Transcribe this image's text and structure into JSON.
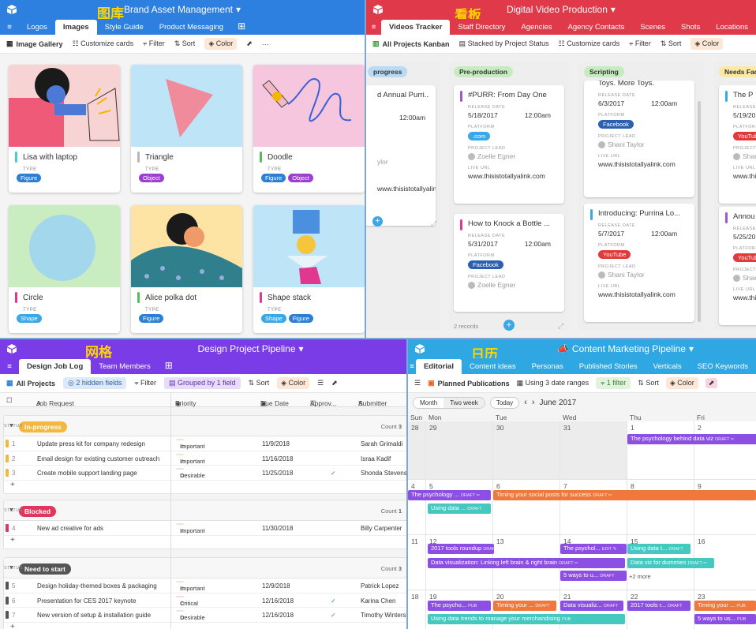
{
  "gallery": {
    "title": "Brand Asset Management",
    "cn": "图库",
    "tabs": [
      "Logos",
      "Images",
      "Style Guide",
      "Product Messaging"
    ],
    "view": "Image Gallery",
    "customize": "Customize cards",
    "filter": "Filter",
    "sort": "Sort",
    "color": "Color",
    "type_label": "TYPE",
    "cards": [
      {
        "name": "Lisa with laptop",
        "bar": "#4ec9c9",
        "badges": [
          {
            "t": "Figure",
            "c": "#2d7fd3"
          }
        ]
      },
      {
        "name": "Triangle",
        "bar": "#b7b7b7",
        "badges": [
          {
            "t": "Object",
            "c": "#9a3fcf"
          }
        ]
      },
      {
        "name": "Doodle",
        "bar": "#5ab95a",
        "badges": [
          {
            "t": "Figure",
            "c": "#2d7fd3"
          },
          {
            "t": "Object",
            "c": "#9a3fcf"
          }
        ]
      },
      {
        "name": "Circle",
        "bar": "#e2378f",
        "badges": [
          {
            "t": "Shape",
            "c": "#39a8e8"
          }
        ]
      },
      {
        "name": "Alice polka dot",
        "bar": "#5ab95a",
        "badges": [
          {
            "t": "Figure",
            "c": "#2d7fd3"
          }
        ]
      },
      {
        "name": "Shape stack",
        "bar": "#e2378f",
        "badges": [
          {
            "t": "Shape",
            "c": "#39a8e8"
          },
          {
            "t": "Figure",
            "c": "#2d7fd3"
          }
        ]
      }
    ]
  },
  "kanban": {
    "title": "Digital Video Production",
    "cn": "看板",
    "tabs": [
      "Videos Tracker",
      "Staff Directory",
      "Agencies",
      "Agency Contacts",
      "Scenes",
      "Shots",
      "Locations"
    ],
    "view": "All Projects Kanban",
    "stacked": "Stacked by Project Status",
    "customize": "Customize cards",
    "filter": "Filter",
    "sort": "Sort",
    "color": "Color",
    "lbl_release": "RELEASE DATE",
    "lbl_platform": "PLATFORM",
    "lbl_lead": "PROJECT LEAD",
    "lbl_live": "LIVE URL",
    "time": "12:00am",
    "url": "www.thisistotallyalink.com",
    "columns": [
      {
        "name": "progress",
        "color": "#b8daf5",
        "cards": [
          {
            "title": "d Annual Purri...",
            "date": "",
            "lead": "ylor"
          }
        ]
      },
      {
        "name": "Pre-production",
        "color": "#c6ebbf",
        "records": "2 records",
        "cards": [
          {
            "title": "#PURR: From Day One",
            "bar": "#9b59d0",
            "date": "5/18/2017",
            "platform": ".com",
            "pc": "#39a8e8",
            "lead": "Zoelle Egner"
          },
          {
            "title": "How to Knock a Bottle ...",
            "bar": "#e2378f",
            "date": "5/31/2017",
            "platform": "Facebook",
            "pc": "#2d5fb0",
            "lead": "Zoelle Egner"
          }
        ]
      },
      {
        "name": "Scripting",
        "color": "#c6ebbf",
        "cards": [
          {
            "title": "Toys. More Toys.",
            "date": "6/3/2017",
            "platform": "Facebook",
            "pc": "#2d5fb0",
            "lead": "Shani Taylor"
          },
          {
            "title": "Introducing: Purrina Lo...",
            "bar": "#39a8e8",
            "date": "5/7/2017",
            "platform": "YouTube",
            "pc": "#e03a3a",
            "lead": "Shani Taylor"
          }
        ]
      },
      {
        "name": "Needs Fact",
        "color": "#fde7a6",
        "cards": [
          {
            "title": "The P",
            "date": "5/19/2017",
            "platform": "YouTube",
            "pc": "#e03a3a",
            "lead": "Shani"
          },
          {
            "title": "Annou",
            "date": "5/25/2017",
            "platform": "YouTube",
            "pc": "#e03a3a",
            "lead": "Shani"
          }
        ]
      }
    ]
  },
  "grid": {
    "title": "Design Project Pipeline",
    "cn": "网格",
    "tabs": [
      "Design Job Log",
      "Team Members"
    ],
    "view": "All Projects",
    "hidden": "2 hidden fields",
    "filter": "Filter",
    "grouped": "Grouped by 1 field",
    "sort": "Sort",
    "color": "Color",
    "cols": [
      "Job Request",
      "Priority",
      "Due Date",
      "Approv...",
      "Submitter"
    ],
    "status": "STATUS",
    "count": "Count",
    "groups": [
      {
        "name": "In-progress",
        "color": "#f5b83d",
        "n": "3",
        "rows": [
          {
            "i": "1",
            "job": "Update press kit for company redesign",
            "pri": "Important",
            "pc": "#d9f2d2",
            "due": "11/9/2018",
            "ap": "",
            "sub": "Sarah Grimaldi"
          },
          {
            "i": "2",
            "job": "Email design for existing customer outreach",
            "pri": "Important",
            "pc": "#d9f2d2",
            "due": "11/16/2018",
            "ap": "",
            "sub": "Israa Kadif"
          },
          {
            "i": "3",
            "job": "Create mobile support landing page",
            "pri": "Desirable",
            "pc": "#dbe8f9",
            "due": "11/25/2018",
            "ap": "✓",
            "sub": "Shonda Stevens"
          }
        ]
      },
      {
        "name": "Blocked",
        "color": "#e0385d",
        "n": "1",
        "rows": [
          {
            "i": "4",
            "job": "New ad creative for ads",
            "pri": "Important",
            "pc": "#d9f2d2",
            "due": "11/30/2018",
            "ap": "",
            "sub": "Billy Carpenter"
          }
        ]
      },
      {
        "name": "Need to start",
        "color": "#555",
        "n": "3",
        "rows": [
          {
            "i": "5",
            "job": "Design holiday-themed boxes & packaging",
            "pri": "Important",
            "pc": "#d9f2d2",
            "due": "12/9/2018",
            "ap": "",
            "sub": "Patrick Lopez"
          },
          {
            "i": "6",
            "job": "Presentation for CES 2017 keynote",
            "pri": "Critical",
            "pc": "#fbd6d6",
            "due": "12/16/2018",
            "ap": "✓",
            "sub": "Karina Chen"
          },
          {
            "i": "7",
            "job": "New version of setup & installation guide",
            "pri": "Desirable",
            "pc": "#dbe8f9",
            "due": "12/16/2018",
            "ap": "✓",
            "sub": "Timothy Winters"
          }
        ]
      }
    ]
  },
  "calendar": {
    "title": "Content Marketing Pipeline",
    "cn": "日历",
    "tabs": [
      "Editorial",
      "Content ideas",
      "Personas",
      "Published Stories",
      "Verticals",
      "SEO Keywords"
    ],
    "view": "Planned Publications",
    "ranges": "Using 3 date ranges",
    "filter1": "1 filter",
    "sort": "Sort",
    "color": "Color",
    "month": "Month",
    "twoweek": "Two week",
    "today": "Today",
    "label": "June 2017",
    "days": [
      "Sun",
      "Mon",
      "Tue",
      "Wed",
      "Thu",
      "Fri"
    ],
    "weeks": [
      [
        "28",
        "29",
        "30",
        "31",
        "1",
        "2"
      ],
      [
        "4",
        "5",
        "6",
        "7",
        "8",
        "9"
      ],
      [
        "11",
        "12",
        "13",
        "14",
        "15",
        "16"
      ],
      [
        "18",
        "19",
        "20",
        "21",
        "22",
        "23"
      ]
    ],
    "more": "+2 more",
    "events": [
      {
        "t": "The psychology behind data viz",
        "s": "DRAFT ✏",
        "c": "#8d4fe3"
      },
      {
        "t": "The psychology ...",
        "s": "DRAFT ✏",
        "c": "#8d4fe3"
      },
      {
        "t": "Timing your social posts for success",
        "s": "DRAFT ✏",
        "c": "#f0783c"
      },
      {
        "t": "Using data ...",
        "s": "DRAFT",
        "c": "#45c8c0"
      },
      {
        "t": "2017 tools roundup",
        "s": "DRAFT ✏",
        "c": "#8d4fe3"
      },
      {
        "t": "The psychol...",
        "s": "EDIT ✎",
        "c": "#8d4fe3"
      },
      {
        "t": "Using data t...",
        "s": "DRAFT",
        "c": "#45c8c0"
      },
      {
        "t": "Data visualization: Linking left brain & right brain",
        "s": "DRAFT ✏",
        "c": "#8d4fe3"
      },
      {
        "t": "Data viz for dummies",
        "s": "DRAFT ✏",
        "c": "#45c8c0"
      },
      {
        "t": "5 ways to u...",
        "s": "DRAFT",
        "c": "#8d4fe3"
      },
      {
        "t": "The psycho...",
        "s": "PUB",
        "c": "#8d4fe3"
      },
      {
        "t": "Timing your ...",
        "s": "DRAFT",
        "c": "#f0783c"
      },
      {
        "t": "Data visualiz...",
        "s": "DRAFT",
        "c": "#8d4fe3"
      },
      {
        "t": "2017 tools r...",
        "s": "DRAFT",
        "c": "#8d4fe3"
      },
      {
        "t": "Timing your ...",
        "s": "PUB",
        "c": "#f0783c"
      },
      {
        "t": "Using data trends to manage your merchandising",
        "s": "PUB",
        "c": "#45c8c0"
      },
      {
        "t": "5 ways to us...",
        "s": "PUB",
        "c": "#8d4fe3"
      }
    ]
  },
  "colors": {
    "gallery": "#2d7fe0",
    "kanban": "#e03a4a",
    "grid": "#7a3ce6",
    "calendar": "#2fa7e3",
    "cn": "#ffd400"
  }
}
